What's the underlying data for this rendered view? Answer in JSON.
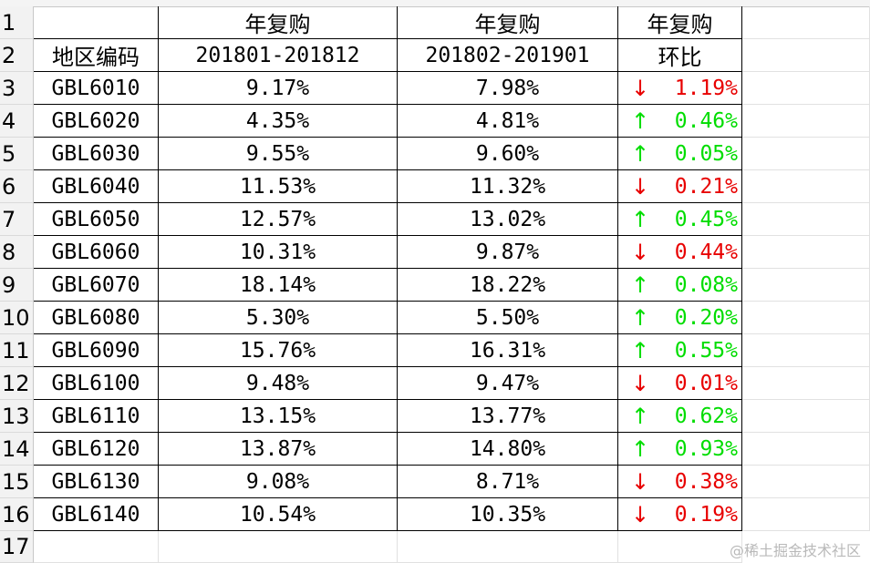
{
  "header_row1": {
    "region": "",
    "period1": "年复购",
    "period2": "年复购",
    "change": "年复购"
  },
  "header_row2": {
    "region": "地区编码",
    "period1": "201801-201812",
    "period2": "201802-201901",
    "change": "环比"
  },
  "rows": [
    {
      "num": "3",
      "code": "GBL6010",
      "p1": "9.17%",
      "p2": "7.98%",
      "dir": "down",
      "arrow": "↓",
      "chg": "1.19%"
    },
    {
      "num": "4",
      "code": "GBL6020",
      "p1": "4.35%",
      "p2": "4.81%",
      "dir": "up",
      "arrow": "↑",
      "chg": "0.46%"
    },
    {
      "num": "5",
      "code": "GBL6030",
      "p1": "9.55%",
      "p2": "9.60%",
      "dir": "up",
      "arrow": "↑",
      "chg": "0.05%"
    },
    {
      "num": "6",
      "code": "GBL6040",
      "p1": "11.53%",
      "p2": "11.32%",
      "dir": "down",
      "arrow": "↓",
      "chg": "0.21%"
    },
    {
      "num": "7",
      "code": "GBL6050",
      "p1": "12.57%",
      "p2": "13.02%",
      "dir": "up",
      "arrow": "↑",
      "chg": "0.45%"
    },
    {
      "num": "8",
      "code": "GBL6060",
      "p1": "10.31%",
      "p2": "9.87%",
      "dir": "down",
      "arrow": "↓",
      "chg": "0.44%"
    },
    {
      "num": "9",
      "code": "GBL6070",
      "p1": "18.14%",
      "p2": "18.22%",
      "dir": "up",
      "arrow": "↑",
      "chg": "0.08%"
    },
    {
      "num": "10",
      "code": "GBL6080",
      "p1": "5.30%",
      "p2": "5.50%",
      "dir": "up",
      "arrow": "↑",
      "chg": "0.20%"
    },
    {
      "num": "11",
      "code": "GBL6090",
      "p1": "15.76%",
      "p2": "16.31%",
      "dir": "up",
      "arrow": "↑",
      "chg": "0.55%"
    },
    {
      "num": "12",
      "code": "GBL6100",
      "p1": "9.48%",
      "p2": "9.47%",
      "dir": "down",
      "arrow": "↓",
      "chg": "0.01%"
    },
    {
      "num": "13",
      "code": "GBL6110",
      "p1": "13.15%",
      "p2": "13.77%",
      "dir": "up",
      "arrow": "↑",
      "chg": "0.62%"
    },
    {
      "num": "14",
      "code": "GBL6120",
      "p1": "13.87%",
      "p2": "14.80%",
      "dir": "up",
      "arrow": "↑",
      "chg": "0.93%"
    },
    {
      "num": "15",
      "code": "GBL6130",
      "p1": "9.08%",
      "p2": "8.71%",
      "dir": "down",
      "arrow": "↓",
      "chg": "0.38%"
    },
    {
      "num": "16",
      "code": "GBL6140",
      "p1": "10.54%",
      "p2": "10.35%",
      "dir": "down",
      "arrow": "↓",
      "chg": "0.19%"
    }
  ],
  "row_numbers": {
    "r1": "1",
    "r2": "2",
    "r17": "17"
  },
  "colors": {
    "up": "#00dd00",
    "down": "#e80000"
  },
  "watermark": "@稀土掘金技术社区"
}
